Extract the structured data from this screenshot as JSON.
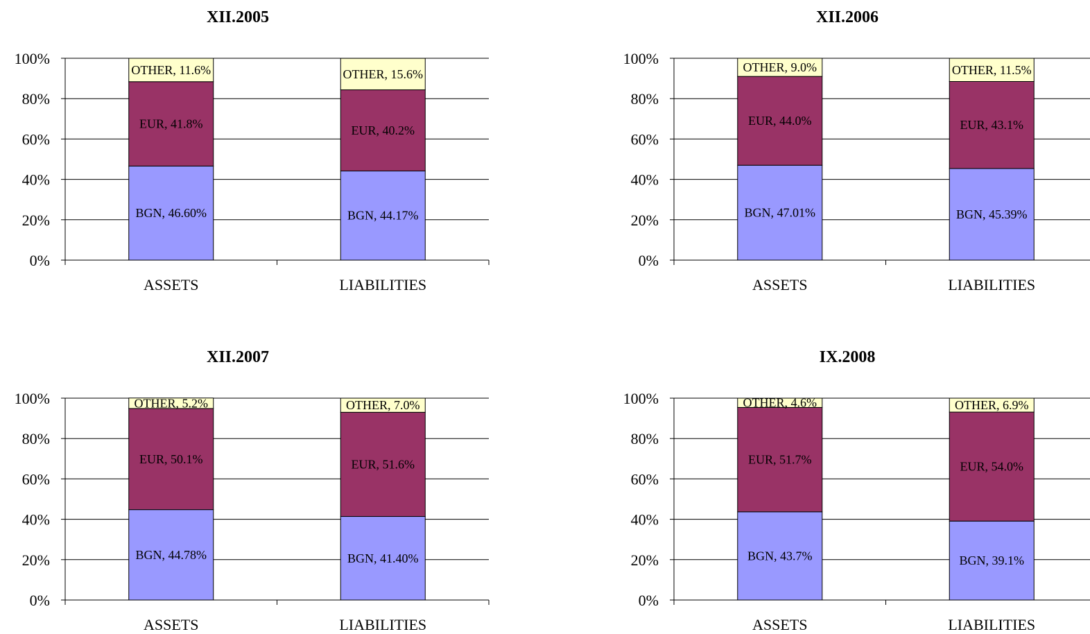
{
  "colors": {
    "BGN": "#9999ff",
    "EUR": "#993366",
    "OTHER": "#ffffcc",
    "gridline": "#000000",
    "text": "#000000"
  },
  "chart_data": [
    {
      "type": "bar",
      "stacked": "percent",
      "title": "XII.2005",
      "categories": [
        "ASSETS",
        "LIABILITIES"
      ],
      "yticks": [
        "0%",
        "20%",
        "40%",
        "60%",
        "80%",
        "100%"
      ],
      "ylim": [
        0,
        100
      ],
      "grid": true,
      "series": [
        {
          "name": "BGN",
          "values": [
            46.6,
            44.17
          ],
          "labels": [
            "BGN, 46.60%",
            "BGN, 44.17%"
          ]
        },
        {
          "name": "EUR",
          "values": [
            41.8,
            40.2
          ],
          "labels": [
            "EUR, 41.8%",
            "EUR, 40.2%"
          ]
        },
        {
          "name": "OTHER",
          "values": [
            11.6,
            15.6
          ],
          "labels": [
            "OTHER, 11.6%",
            "OTHER, 15.6%"
          ]
        }
      ]
    },
    {
      "type": "bar",
      "stacked": "percent",
      "title": "XII.2006",
      "categories": [
        "ASSETS",
        "LIABILITIES"
      ],
      "yticks": [
        "0%",
        "20%",
        "40%",
        "60%",
        "80%",
        "100%"
      ],
      "ylim": [
        0,
        100
      ],
      "grid": true,
      "series": [
        {
          "name": "BGN",
          "values": [
            47.01,
            45.39
          ],
          "labels": [
            "BGN, 47.01%",
            "BGN, 45.39%"
          ]
        },
        {
          "name": "EUR",
          "values": [
            44.0,
            43.1
          ],
          "labels": [
            "EUR, 44.0%",
            "EUR, 43.1%"
          ]
        },
        {
          "name": "OTHER",
          "values": [
            9.0,
            11.5
          ],
          "labels": [
            "OTHER, 9.0%",
            "OTHER, 11.5%"
          ]
        }
      ]
    },
    {
      "type": "bar",
      "stacked": "percent",
      "title": "XII.2007",
      "categories": [
        "ASSETS",
        "LIABILITIES"
      ],
      "yticks": [
        "0%",
        "20%",
        "40%",
        "60%",
        "80%",
        "100%"
      ],
      "ylim": [
        0,
        100
      ],
      "grid": true,
      "series": [
        {
          "name": "BGN",
          "values": [
            44.78,
            41.4
          ],
          "labels": [
            "BGN, 44.78%",
            "BGN, 41.40%"
          ]
        },
        {
          "name": "EUR",
          "values": [
            50.1,
            51.6
          ],
          "labels": [
            "EUR, 50.1%",
            "EUR, 51.6%"
          ]
        },
        {
          "name": "OTHER",
          "values": [
            5.2,
            7.0
          ],
          "labels": [
            "OTHER, 5.2%",
            "OTHER, 7.0%"
          ]
        }
      ]
    },
    {
      "type": "bar",
      "stacked": "percent",
      "title": "IX.2008",
      "categories": [
        "ASSETS",
        "LIABILITIES"
      ],
      "yticks": [
        "0%",
        "20%",
        "40%",
        "60%",
        "80%",
        "100%"
      ],
      "ylim": [
        0,
        100
      ],
      "grid": true,
      "series": [
        {
          "name": "BGN",
          "values": [
            43.7,
            39.1
          ],
          "labels": [
            "BGN, 43.7%",
            "BGN, 39.1%"
          ]
        },
        {
          "name": "EUR",
          "values": [
            51.7,
            54.0
          ],
          "labels": [
            "EUR, 51.7%",
            "EUR, 54.0%"
          ]
        },
        {
          "name": "OTHER",
          "values": [
            4.6,
            6.9
          ],
          "labels": [
            "OTHER, 4.6%",
            "OTHER, 6.9%"
          ]
        }
      ]
    }
  ]
}
